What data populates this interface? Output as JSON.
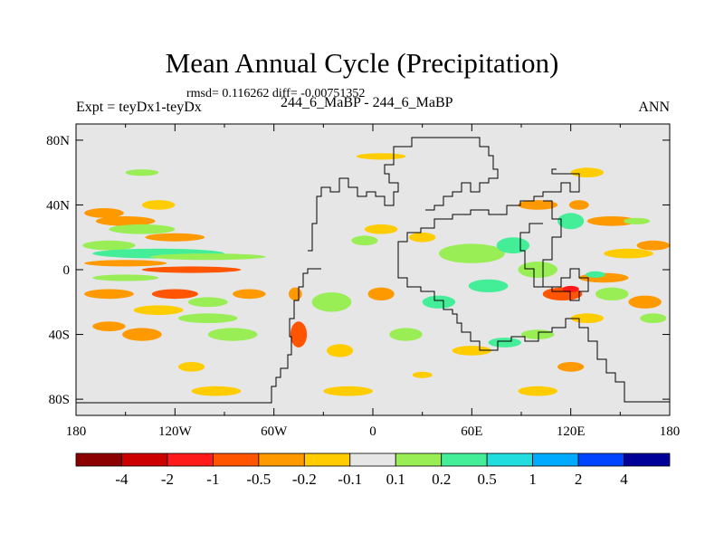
{
  "chart_data": {
    "type": "heatmap",
    "title": "Mean Annual Cycle (Precipitation)",
    "stats_text": "rmsd= 0.116262  diff= -0.00751352",
    "left_label": "Expt = teyDx1-teyDx",
    "center_label": "244_6_MaBP - 244_6_MaBP",
    "right_label": "ANN",
    "xlim": [
      -180,
      180
    ],
    "ylim": [
      -90,
      90
    ],
    "x_ticks": [
      {
        "value": -180,
        "label": "180"
      },
      {
        "value": -120,
        "label": "120W"
      },
      {
        "value": -60,
        "label": "60W"
      },
      {
        "value": 0,
        "label": "0"
      },
      {
        "value": 60,
        "label": "60E"
      },
      {
        "value": 120,
        "label": "120E"
      },
      {
        "value": 180,
        "label": "180"
      }
    ],
    "y_ticks": [
      {
        "value": 80,
        "label": "80N"
      },
      {
        "value": 40,
        "label": "40N"
      },
      {
        "value": 0,
        "label": "0"
      },
      {
        "value": -40,
        "label": "40S"
      },
      {
        "value": -80,
        "label": "80S"
      }
    ],
    "colorbar": {
      "colors": [
        "#8b0000",
        "#cd0000",
        "#ff1a1a",
        "#ff5500",
        "#ff9900",
        "#ffcc00",
        "#e6e6e6",
        "#99ee55",
        "#44ee99",
        "#22dddd",
        "#00aaff",
        "#0044ff",
        "#000099"
      ],
      "levels": [
        "-4",
        "-2",
        "-1",
        "-0.5",
        "-0.2",
        "-0.1",
        "0.1",
        "0.2",
        "0.5",
        "1",
        "2",
        "4"
      ]
    },
    "background_color": "#e6e6e6",
    "regions": [
      {
        "lon": -163,
        "lat": 35,
        "rlon": 12,
        "rlat": 3,
        "level": 4
      },
      {
        "lon": -130,
        "lat": 40,
        "rlon": 10,
        "rlat": 3,
        "level": 5
      },
      {
        "lon": -150,
        "lat": 30,
        "rlon": 18,
        "rlat": 3,
        "level": 4
      },
      {
        "lon": -120,
        "lat": 20,
        "rlon": 18,
        "rlat": 2.5,
        "level": 4
      },
      {
        "lon": -140,
        "lat": 25,
        "rlon": 20,
        "rlat": 3,
        "level": 7
      },
      {
        "lon": -160,
        "lat": 15,
        "rlon": 16,
        "rlat": 3,
        "level": 7
      },
      {
        "lon": -130,
        "lat": 10,
        "rlon": 40,
        "rlat": 3,
        "level": 8
      },
      {
        "lon": -100,
        "lat": 8,
        "rlon": 35,
        "rlat": 2,
        "level": 7
      },
      {
        "lon": -150,
        "lat": 4,
        "rlon": 25,
        "rlat": 2,
        "level": 4
      },
      {
        "lon": -110,
        "lat": 0,
        "rlon": 30,
        "rlat": 2,
        "level": 3
      },
      {
        "lon": -150,
        "lat": -5,
        "rlon": 20,
        "rlat": 2,
        "level": 7
      },
      {
        "lon": -160,
        "lat": -15,
        "rlon": 15,
        "rlat": 3,
        "level": 4
      },
      {
        "lon": -120,
        "lat": -15,
        "rlon": 14,
        "rlat": 3,
        "level": 3
      },
      {
        "lon": -100,
        "lat": -20,
        "rlon": 12,
        "rlat": 3,
        "level": 7
      },
      {
        "lon": -75,
        "lat": -15,
        "rlon": 10,
        "rlat": 3,
        "level": 4
      },
      {
        "lon": -160,
        "lat": -35,
        "rlon": 10,
        "rlat": 3,
        "level": 4
      },
      {
        "lon": -130,
        "lat": -25,
        "rlon": 15,
        "rlat": 3,
        "level": 5
      },
      {
        "lon": -140,
        "lat": -40,
        "rlon": 12,
        "rlat": 4,
        "level": 4
      },
      {
        "lon": -100,
        "lat": -30,
        "rlon": 18,
        "rlat": 3,
        "level": 7
      },
      {
        "lon": -85,
        "lat": -40,
        "rlon": 15,
        "rlat": 4,
        "level": 7
      },
      {
        "lon": -110,
        "lat": -60,
        "rlon": 8,
        "rlat": 3,
        "level": 5
      },
      {
        "lon": -95,
        "lat": -75,
        "rlon": 15,
        "rlat": 3,
        "level": 5
      },
      {
        "lon": -45,
        "lat": -40,
        "rlon": 5,
        "rlat": 8,
        "level": 3
      },
      {
        "lon": -47,
        "lat": -15,
        "rlon": 4,
        "rlat": 4,
        "level": 4
      },
      {
        "lon": -20,
        "lat": -50,
        "rlon": 8,
        "rlat": 4,
        "level": 5
      },
      {
        "lon": -25,
        "lat": -20,
        "rlon": 12,
        "rlat": 6,
        "level": 7
      },
      {
        "lon": -15,
        "lat": -75,
        "rlon": 15,
        "rlat": 3,
        "level": 5
      },
      {
        "lon": 5,
        "lat": -15,
        "rlon": 8,
        "rlat": 4,
        "level": 4
      },
      {
        "lon": 5,
        "lat": 25,
        "rlon": 10,
        "rlat": 3,
        "level": 5
      },
      {
        "lon": -5,
        "lat": 18,
        "rlon": 8,
        "rlat": 3,
        "level": 7
      },
      {
        "lon": 30,
        "lat": 20,
        "rlon": 8,
        "rlat": 3,
        "level": 5
      },
      {
        "lon": 20,
        "lat": -40,
        "rlon": 10,
        "rlat": 4,
        "level": 7
      },
      {
        "lon": 40,
        "lat": -20,
        "rlon": 10,
        "rlat": 4,
        "level": 8
      },
      {
        "lon": 60,
        "lat": 10,
        "rlon": 20,
        "rlat": 6,
        "level": 7
      },
      {
        "lon": 70,
        "lat": -10,
        "rlon": 12,
        "rlat": 4,
        "level": 8
      },
      {
        "lon": 85,
        "lat": 15,
        "rlon": 10,
        "rlat": 5,
        "level": 8
      },
      {
        "lon": 100,
        "lat": 0,
        "rlon": 12,
        "rlat": 5,
        "level": 7
      },
      {
        "lon": 120,
        "lat": 30,
        "rlon": 8,
        "rlat": 5,
        "level": 8
      },
      {
        "lon": 125,
        "lat": 40,
        "rlon": 6,
        "rlat": 3,
        "level": 4
      },
      {
        "lon": 145,
        "lat": 30,
        "rlon": 15,
        "rlat": 3,
        "level": 4
      },
      {
        "lon": 170,
        "lat": 15,
        "rlon": 10,
        "rlat": 3,
        "level": 4
      },
      {
        "lon": 155,
        "lat": 10,
        "rlon": 15,
        "rlat": 3,
        "level": 5
      },
      {
        "lon": 140,
        "lat": -5,
        "rlon": 15,
        "rlat": 3,
        "level": 4
      },
      {
        "lon": 135,
        "lat": -3,
        "rlon": 6,
        "rlat": 2,
        "level": 8
      },
      {
        "lon": 115,
        "lat": -15,
        "rlon": 12,
        "rlat": 4,
        "level": 3
      },
      {
        "lon": 120,
        "lat": -12,
        "rlon": 5,
        "rlat": 2,
        "level": 2
      },
      {
        "lon": 145,
        "lat": -15,
        "rlon": 10,
        "rlat": 4,
        "level": 7
      },
      {
        "lon": 165,
        "lat": -20,
        "rlon": 10,
        "rlat": 4,
        "level": 4
      },
      {
        "lon": 170,
        "lat": -30,
        "rlon": 8,
        "rlat": 3,
        "level": 7
      },
      {
        "lon": 130,
        "lat": -30,
        "rlon": 10,
        "rlat": 3,
        "level": 5
      },
      {
        "lon": 100,
        "lat": -40,
        "rlon": 10,
        "rlat": 3,
        "level": 7
      },
      {
        "lon": 80,
        "lat": -45,
        "rlon": 10,
        "rlat": 3,
        "level": 8
      },
      {
        "lon": 60,
        "lat": -50,
        "rlon": 12,
        "rlat": 3,
        "level": 5
      },
      {
        "lon": 120,
        "lat": -60,
        "rlon": 8,
        "rlat": 3,
        "level": 4
      },
      {
        "lon": 100,
        "lat": -75,
        "rlon": 12,
        "rlat": 3,
        "level": 5
      },
      {
        "lon": 30,
        "lat": -65,
        "rlon": 6,
        "rlat": 2,
        "level": 5
      },
      {
        "lon": 100,
        "lat": 40,
        "rlon": 12,
        "rlat": 3,
        "level": 4
      },
      {
        "lon": 160,
        "lat": 30,
        "rlon": 8,
        "rlat": 2,
        "level": 7
      },
      {
        "lon": 5,
        "lat": 70,
        "rlon": 15,
        "rlat": 2,
        "level": 5
      },
      {
        "lon": -140,
        "lat": 60,
        "rlon": 10,
        "rlat": 2,
        "level": 7
      },
      {
        "lon": 130,
        "lat": 60,
        "rlon": 10,
        "rlat": 3,
        "level": 5
      }
    ]
  }
}
